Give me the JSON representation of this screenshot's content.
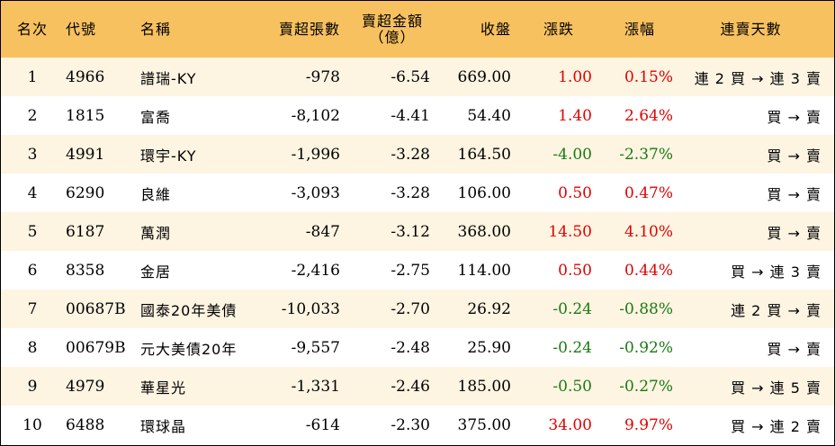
{
  "columns": {
    "rank": "名次",
    "code": "代號",
    "name": "名稱",
    "net_sell_lots": "賣超張數",
    "net_sell_amount_l1": "賣超金額",
    "net_sell_amount_l2": "（億）",
    "close": "收盤",
    "change": "漲跌",
    "change_pct": "漲幅",
    "streak": "連賣天數"
  },
  "colors": {
    "header_bg": "#f7c160",
    "stripe_bg": "#fdf4e2",
    "up": "#e00000",
    "down": "#1a7a12"
  },
  "rows": [
    {
      "rank": "1",
      "code": "4966",
      "name": "譜瑞-KY",
      "lots": "-978",
      "amount": "-6.54",
      "close": "669.00",
      "change": "1.00",
      "pct": "0.15%",
      "dir": "up",
      "streak": "連 2 買 → 連 3 賣"
    },
    {
      "rank": "2",
      "code": "1815",
      "name": "富喬",
      "lots": "-8,102",
      "amount": "-4.41",
      "close": "54.40",
      "change": "1.40",
      "pct": "2.64%",
      "dir": "up",
      "streak": "買 → 賣"
    },
    {
      "rank": "3",
      "code": "4991",
      "name": "環宇-KY",
      "lots": "-1,996",
      "amount": "-3.28",
      "close": "164.50",
      "change": "-4.00",
      "pct": "-2.37%",
      "dir": "down",
      "streak": "買 → 賣"
    },
    {
      "rank": "4",
      "code": "6290",
      "name": "良維",
      "lots": "-3,093",
      "amount": "-3.28",
      "close": "106.00",
      "change": "0.50",
      "pct": "0.47%",
      "dir": "up",
      "streak": "買 → 賣"
    },
    {
      "rank": "5",
      "code": "6187",
      "name": "萬潤",
      "lots": "-847",
      "amount": "-3.12",
      "close": "368.00",
      "change": "14.50",
      "pct": "4.10%",
      "dir": "up",
      "streak": "買 → 賣"
    },
    {
      "rank": "6",
      "code": "8358",
      "name": "金居",
      "lots": "-2,416",
      "amount": "-2.75",
      "close": "114.00",
      "change": "0.50",
      "pct": "0.44%",
      "dir": "up",
      "streak": "買 → 連 3 賣"
    },
    {
      "rank": "7",
      "code": "00687B",
      "name": "國泰20年美債",
      "lots": "-10,033",
      "amount": "-2.70",
      "close": "26.92",
      "change": "-0.24",
      "pct": "-0.88%",
      "dir": "down",
      "streak": "連 2 買 → 賣"
    },
    {
      "rank": "8",
      "code": "00679B",
      "name": "元大美債20年",
      "lots": "-9,557",
      "amount": "-2.48",
      "close": "25.90",
      "change": "-0.24",
      "pct": "-0.92%",
      "dir": "down",
      "streak": "買 → 賣"
    },
    {
      "rank": "9",
      "code": "4979",
      "name": "華星光",
      "lots": "-1,331",
      "amount": "-2.46",
      "close": "185.00",
      "change": "-0.50",
      "pct": "-0.27%",
      "dir": "down",
      "streak": "買 → 連 5 賣"
    },
    {
      "rank": "10",
      "code": "6488",
      "name": "環球晶",
      "lots": "-614",
      "amount": "-2.30",
      "close": "375.00",
      "change": "34.00",
      "pct": "9.97%",
      "dir": "up",
      "streak": "買 → 連 2 賣"
    }
  ]
}
